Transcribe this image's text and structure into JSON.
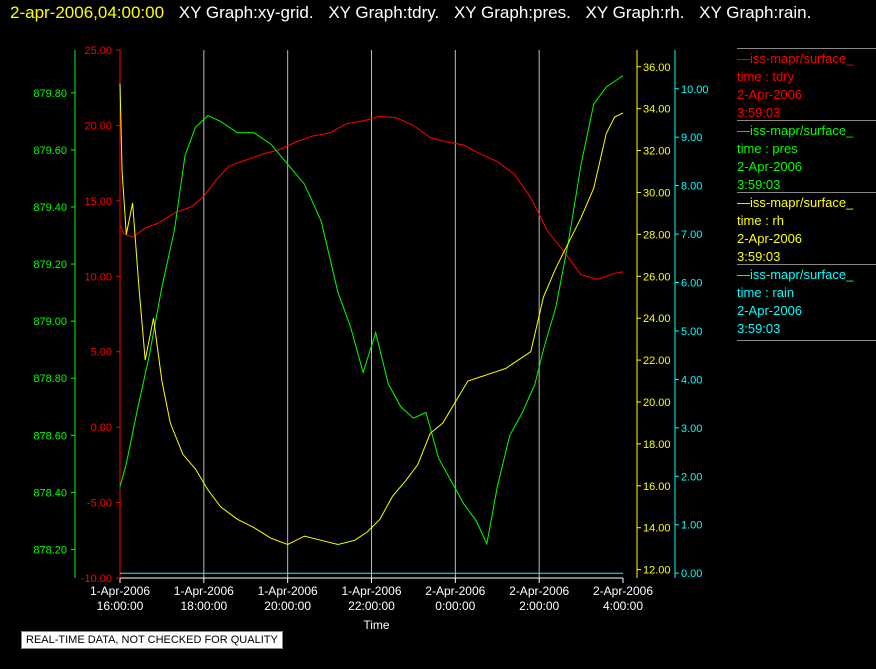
{
  "header": {
    "time": "2-apr-2006,04:00:00",
    "titles": [
      "XY Graph:xy-grid.",
      "XY Graph:tdry.",
      "XY Graph:pres.",
      "XY Graph:rh.",
      "XY Graph:rain."
    ]
  },
  "legend": [
    {
      "source": "iss-mapr/surface_",
      "var": "time : tdry",
      "date": "2-Apr-2006",
      "time": "3:59:03",
      "color": "#ff0000"
    },
    {
      "source": "iss-mapr/surface_",
      "var": "time : pres",
      "date": "2-Apr-2006",
      "time": "3:59:03",
      "color": "#00ff00"
    },
    {
      "source": "iss-mapr/surface_",
      "var": "time : rh",
      "date": "2-Apr-2006",
      "time": "3:59:03",
      "color": "#ffff00"
    },
    {
      "source": "iss-mapr/surface_",
      "var": "time : rain",
      "date": "2-Apr-2006",
      "time": "3:59:03",
      "color": "#00ffff"
    }
  ],
  "footer": "REAL-TIME DATA, NOT CHECKED FOR QUALITY",
  "chart_data": {
    "type": "line",
    "xlabel": "Time",
    "x_ticks": [
      {
        "x": 16,
        "label": [
          "1-Apr-2006",
          "16:00:00"
        ]
      },
      {
        "x": 18,
        "label": [
          "1-Apr-2006",
          "18:00:00"
        ]
      },
      {
        "x": 20,
        "label": [
          "1-Apr-2006",
          "20:00:00"
        ]
      },
      {
        "x": 22,
        "label": [
          "1-Apr-2006",
          "22:00:00"
        ]
      },
      {
        "x": 24,
        "label": [
          "2-Apr-2006",
          "0:00:00"
        ]
      },
      {
        "x": 26,
        "label": [
          "2-Apr-2006",
          "2:00:00"
        ]
      },
      {
        "x": 28,
        "label": [
          "2-Apr-2006",
          "4:00:00"
        ]
      }
    ],
    "xlim": [
      16,
      28
    ],
    "axes": [
      {
        "id": "tdry",
        "color": "#ff0000",
        "ylim": [
          -10,
          25
        ],
        "ticks": [
          -10,
          -5,
          0,
          5,
          10,
          15,
          20,
          25
        ],
        "decimals": 2
      },
      {
        "id": "pres",
        "color": "#00ff00",
        "ylim": [
          878.1,
          879.95
        ],
        "ticks": [
          878.2,
          878.4,
          878.6,
          878.8,
          879.0,
          879.2,
          879.4,
          879.6,
          879.8
        ],
        "decimals": 2
      },
      {
        "id": "rh",
        "color": "#ffff00",
        "ylim": [
          11.6,
          36.8
        ],
        "ticks": [
          12,
          14,
          16,
          18,
          20,
          22,
          24,
          26,
          28,
          30,
          32,
          34,
          36
        ],
        "decimals": 2
      },
      {
        "id": "rain",
        "color": "#00ffff",
        "ylim": [
          -0.1,
          10.8
        ],
        "ticks": [
          0,
          1,
          2,
          3,
          4,
          5,
          6,
          7,
          8,
          9,
          10
        ],
        "decimals": 2
      }
    ],
    "series": [
      {
        "axis": "tdry",
        "color": "#ff0000",
        "x": [
          16,
          16.1,
          16.3,
          16.6,
          16.9,
          17.3,
          17.7,
          18.0,
          18.3,
          18.6,
          19.0,
          19.4,
          19.8,
          20.2,
          20.6,
          21.0,
          21.4,
          21.8,
          22.2,
          22.6,
          23.0,
          23.4,
          23.8,
          24.2,
          24.6,
          25.0,
          25.4,
          25.8,
          26.2,
          26.6,
          27.0,
          27.4,
          27.8,
          28.0
        ],
        "y": [
          13.4,
          12.8,
          12.6,
          13.2,
          13.5,
          14.2,
          14.6,
          15.3,
          16.4,
          17.3,
          17.7,
          18.1,
          18.4,
          18.9,
          19.3,
          19.5,
          20.1,
          20.3,
          20.6,
          20.5,
          20.0,
          19.2,
          18.9,
          18.7,
          18.1,
          17.6,
          16.8,
          15.2,
          13.0,
          11.6,
          10.1,
          9.8,
          10.2,
          10.3
        ]
      },
      {
        "axis": "pres",
        "color": "#00ff00",
        "x": [
          16,
          16.15,
          16.4,
          16.7,
          17.0,
          17.3,
          17.55,
          17.8,
          18.1,
          18.4,
          18.8,
          19.2,
          19.6,
          20.0,
          20.4,
          20.8,
          21.2,
          21.5,
          21.8,
          22.1,
          22.4,
          22.7,
          23.0,
          23.3,
          23.6,
          23.9,
          24.2,
          24.5,
          24.75,
          25.0,
          25.3,
          25.6,
          25.9,
          26.1,
          26.4,
          26.7,
          27.0,
          27.3,
          27.6,
          27.9,
          28.0
        ],
        "y": [
          878.42,
          878.5,
          878.68,
          878.88,
          879.12,
          879.32,
          879.58,
          879.68,
          879.72,
          879.7,
          879.66,
          879.66,
          879.62,
          879.55,
          879.48,
          879.35,
          879.1,
          878.98,
          878.82,
          878.96,
          878.78,
          878.7,
          878.66,
          878.68,
          878.52,
          878.44,
          878.36,
          878.3,
          878.22,
          878.42,
          878.6,
          878.68,
          878.78,
          878.9,
          879.05,
          879.28,
          879.55,
          879.76,
          879.82,
          879.85,
          879.86
        ]
      },
      {
        "axis": "rh",
        "color": "#ffff00",
        "x": [
          16,
          16.05,
          16.15,
          16.3,
          16.45,
          16.6,
          16.8,
          17.0,
          17.2,
          17.5,
          17.8,
          18.1,
          18.4,
          18.8,
          19.2,
          19.6,
          20.0,
          20.4,
          20.8,
          21.2,
          21.6,
          21.9,
          22.2,
          22.5,
          22.8,
          23.1,
          23.4,
          23.7,
          24.0,
          24.3,
          24.6,
          24.9,
          25.2,
          25.5,
          25.8,
          26.1,
          26.4,
          26.7,
          27.0,
          27.3,
          27.6,
          27.8,
          28.0
        ],
        "y": [
          35.2,
          31.0,
          28.0,
          29.5,
          25.5,
          22.0,
          24.0,
          21.0,
          19.0,
          17.5,
          16.8,
          15.8,
          15.0,
          14.4,
          14.0,
          13.5,
          13.2,
          13.6,
          13.4,
          13.2,
          13.4,
          13.8,
          14.4,
          15.5,
          16.2,
          17.0,
          18.5,
          19.0,
          20.0,
          21.0,
          21.2,
          21.4,
          21.6,
          22.0,
          22.4,
          25.0,
          26.4,
          27.6,
          28.8,
          30.2,
          32.8,
          33.6,
          33.8
        ]
      },
      {
        "axis": "rain",
        "color": "#00ffff",
        "x": [
          16,
          28
        ],
        "y": [
          0,
          0
        ]
      }
    ]
  }
}
